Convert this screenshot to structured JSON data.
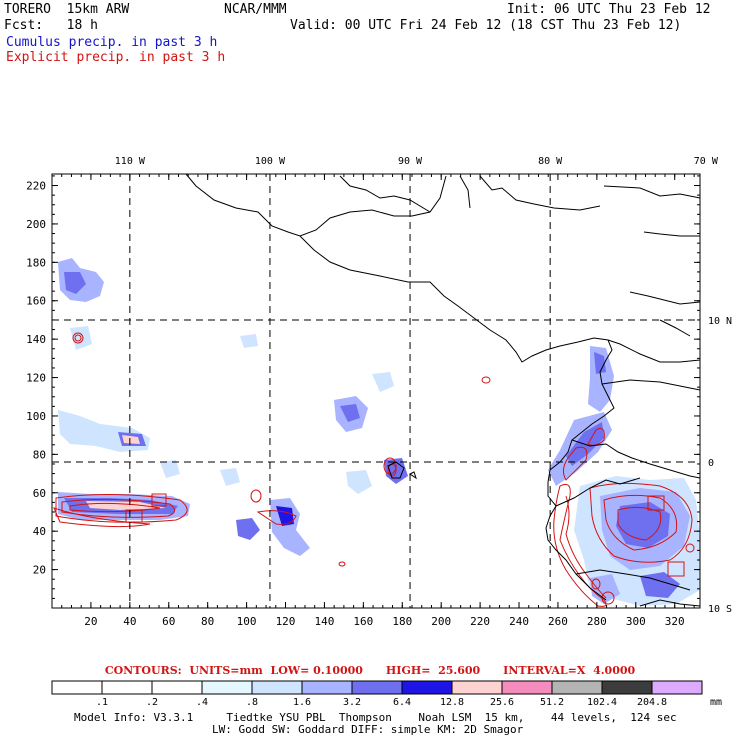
{
  "header": {
    "model": "TORERO  15km ARW",
    "org": "NCAR/MMM",
    "init": "Init: 06 UTC Thu 23 Feb 12",
    "fcst": "Fcst:   18 h",
    "valid": "Valid: 00 UTC Fri 24 Feb 12 (18 CST Thu 23 Feb 12)",
    "cumulus": "Cumulus precip. in past 3 h",
    "explicit": "Explicit precip. in past 3 h"
  },
  "map": {
    "top_lon_labels": [
      "110 W",
      "100 W",
      "90 W",
      "80 W",
      "70 W"
    ],
    "right_lat_labels": [
      "10 N",
      "0",
      "10 S"
    ],
    "x_ticks": [
      "20",
      "40",
      "60",
      "80",
      "100",
      "120",
      "140",
      "160",
      "180",
      "200",
      "220",
      "240",
      "260",
      "280",
      "300",
      "320"
    ],
    "y_ticks": [
      "220",
      "200",
      "180",
      "160",
      "140",
      "120",
      "100",
      "80",
      "60",
      "40",
      "20"
    ],
    "x_range": [
      0,
      333
    ],
    "y_range": [
      0,
      226
    ],
    "grid_lon_x": [
      40,
      112,
      184,
      256
    ],
    "grid_lat_y": [
      76,
      150
    ]
  },
  "contours_note": "CONTOURS:  UNITS=mm  LOW= 0.10000      HIGH=  25.600      INTERVAL=X  4.0000",
  "colorbar": {
    "labels": [
      ".1",
      ".2",
      ".4",
      ".8",
      "1.6",
      "3.2",
      "6.4",
      "12.8",
      "25.6",
      "51.2",
      "102.4",
      "204.8"
    ],
    "units": "mm",
    "colors": [
      "#ffffff",
      "#ffffff",
      "#ffffff",
      "#e6f8ff",
      "#cfe4ff",
      "#a8b4ff",
      "#6e70f0",
      "#1e14e6",
      "#ffd2d2",
      "#f58cbe",
      "#b4b4b4",
      "#3c3c3c",
      "#dcaaff"
    ]
  },
  "footer": {
    "line1": "Model Info: V3.3.1     Tiedtke YSU PBL  Thompson    Noah LSM  15 km,    44 levels,  124 sec",
    "line2": "LW: Godd SW: Goddard DIFF: simple KM: 2D Smagor"
  }
}
